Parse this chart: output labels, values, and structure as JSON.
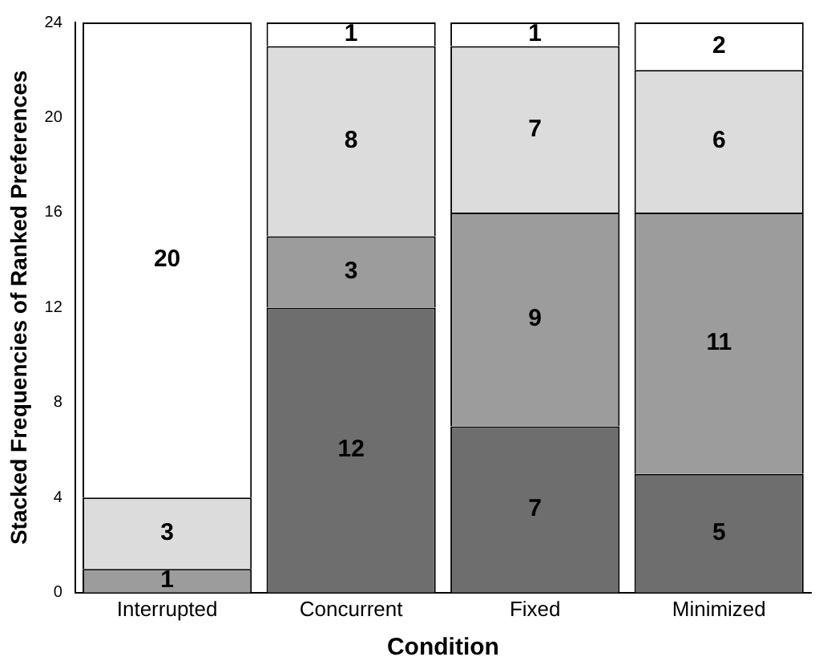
{
  "chart_data": {
    "type": "bar",
    "stacked": true,
    "xlabel": "Condition",
    "ylabel": "Stacked Frequencies of Ranked Preferences",
    "categories": [
      "Interrupted",
      "Concurrent",
      "Fixed",
      "Minimized"
    ],
    "series": [
      {
        "color": "#6e6e6e",
        "values": [
          0,
          12,
          7,
          5
        ],
        "value_labels": [
          null,
          "12",
          "7",
          "5"
        ]
      },
      {
        "color": "#9c9c9c",
        "values": [
          1,
          3,
          9,
          11
        ],
        "value_labels": [
          "1",
          "3",
          "9",
          "11"
        ]
      },
      {
        "color": "#dcdcdc",
        "values": [
          3,
          8,
          7,
          6
        ],
        "value_labels": [
          "3",
          "8",
          "7",
          "6"
        ]
      },
      {
        "color": "#ffffff",
        "values": [
          20,
          1,
          1,
          2
        ],
        "value_labels": [
          "20",
          "1",
          "1",
          "2"
        ]
      }
    ],
    "ylim": [
      0,
      24
    ],
    "yticks": [
      0,
      4,
      8,
      12,
      16,
      20,
      24
    ],
    "grid": false,
    "legend": false
  }
}
